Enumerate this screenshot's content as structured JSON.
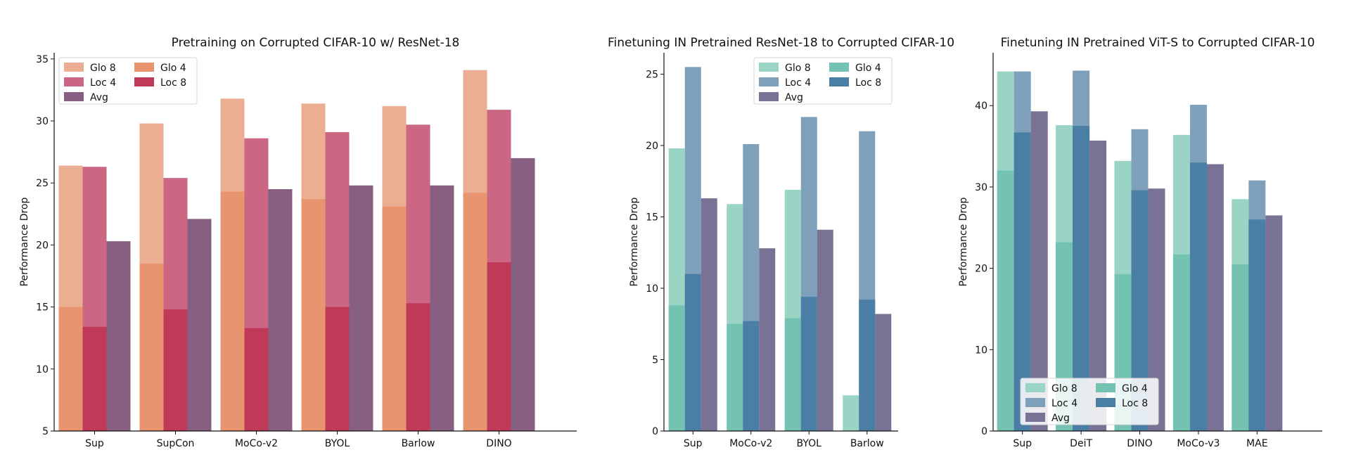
{
  "chart_data": [
    {
      "type": "bar",
      "title": "Pretraining on Corrupted CIFAR-10 w/ ResNet-18",
      "ylabel": "Performance Drop",
      "xlabel": "",
      "ylim": [
        5,
        35.5
      ],
      "yticks": [
        5,
        10,
        15,
        20,
        25,
        30,
        35
      ],
      "categories": [
        "Sup",
        "SupCon",
        "MoCo-v2",
        "BYOL",
        "Barlow",
        "DINO"
      ],
      "legend": {
        "position": "top-left",
        "rows": [
          [
            "Glo 8",
            "Glo 4"
          ],
          [
            "Loc 4",
            "Loc 8"
          ],
          [
            "Avg"
          ]
        ]
      },
      "series": [
        {
          "name": "Glo 8",
          "values": [
            26.4,
            29.8,
            31.8,
            31.4,
            31.2,
            34.1
          ],
          "color": "#ebae92"
        },
        {
          "name": "Glo 4",
          "values": [
            15.0,
            18.5,
            24.3,
            23.7,
            23.1,
            24.2
          ],
          "color": "#e8956f"
        },
        {
          "name": "Loc 4",
          "values": [
            26.3,
            25.4,
            28.6,
            29.1,
            29.7,
            30.9
          ],
          "color": "#cb6683"
        },
        {
          "name": "Loc 8",
          "values": [
            13.4,
            14.8,
            13.3,
            15.0,
            15.3,
            18.6
          ],
          "color": "#bf3a59"
        },
        {
          "name": "Avg",
          "values": [
            20.3,
            22.1,
            24.5,
            24.8,
            24.8,
            27.0
          ],
          "color": "#876081"
        }
      ]
    },
    {
      "type": "bar",
      "title": "Finetuning IN Pretrained ResNet-18 to Corrupted CIFAR-10",
      "ylabel": "Performance Drop",
      "xlabel": "",
      "ylim": [
        0,
        26.5
      ],
      "yticks": [
        0,
        5,
        10,
        15,
        20,
        25
      ],
      "categories": [
        "Sup",
        "MoCo-v2",
        "BYOL",
        "Barlow"
      ],
      "legend": {
        "position": "top-right",
        "rows": [
          [
            "Glo 8",
            "Glo 4"
          ],
          [
            "Loc 4",
            "Loc 8"
          ],
          [
            "Avg"
          ]
        ]
      },
      "series": [
        {
          "name": "Glo 8",
          "values": [
            19.8,
            15.9,
            16.9,
            2.5
          ],
          "color": "#99d4c5"
        },
        {
          "name": "Glo 4",
          "values": [
            8.8,
            7.5,
            7.9,
            0
          ],
          "color": "#74c3b2"
        },
        {
          "name": "Loc 4",
          "values": [
            25.5,
            20.1,
            22.0,
            21.0
          ],
          "color": "#7ea0ba"
        },
        {
          "name": "Loc 8",
          "values": [
            11.0,
            7.7,
            9.4,
            9.2
          ],
          "color": "#4a7ea4"
        },
        {
          "name": "Avg",
          "values": [
            16.3,
            12.8,
            14.1,
            8.2
          ],
          "color": "#7a7294"
        }
      ]
    },
    {
      "type": "bar",
      "title": "Finetuning IN Pretrained ViT-S to Corrupted CIFAR-10",
      "ylabel": "Performance Drop",
      "xlabel": "",
      "ylim": [
        0,
        46.5
      ],
      "yticks": [
        0,
        10,
        20,
        30,
        40
      ],
      "categories": [
        "Sup",
        "DeiT",
        "DINO",
        "MoCo-v3",
        "MAE"
      ],
      "legend": {
        "position": "bottom-left",
        "rows": [
          [
            "Glo 8",
            "Glo 4"
          ],
          [
            "Loc 4",
            "Loc 8"
          ],
          [
            "Avg"
          ]
        ]
      },
      "series": [
        {
          "name": "Glo 8",
          "values": [
            44.2,
            37.6,
            33.2,
            36.4,
            28.5
          ],
          "color": "#99d4c5"
        },
        {
          "name": "Glo 4",
          "values": [
            32.0,
            23.2,
            19.3,
            21.7,
            20.5
          ],
          "color": "#74c3b2"
        },
        {
          "name": "Loc 4",
          "values": [
            44.2,
            44.3,
            37.1,
            40.1,
            30.8
          ],
          "color": "#7ea0ba"
        },
        {
          "name": "Loc 8",
          "values": [
            36.7,
            37.5,
            29.6,
            33.0,
            26.0
          ],
          "color": "#4a7ea4"
        },
        {
          "name": "Avg",
          "values": [
            39.3,
            35.7,
            29.8,
            32.8,
            26.5
          ],
          "color": "#7a7294"
        }
      ]
    }
  ]
}
